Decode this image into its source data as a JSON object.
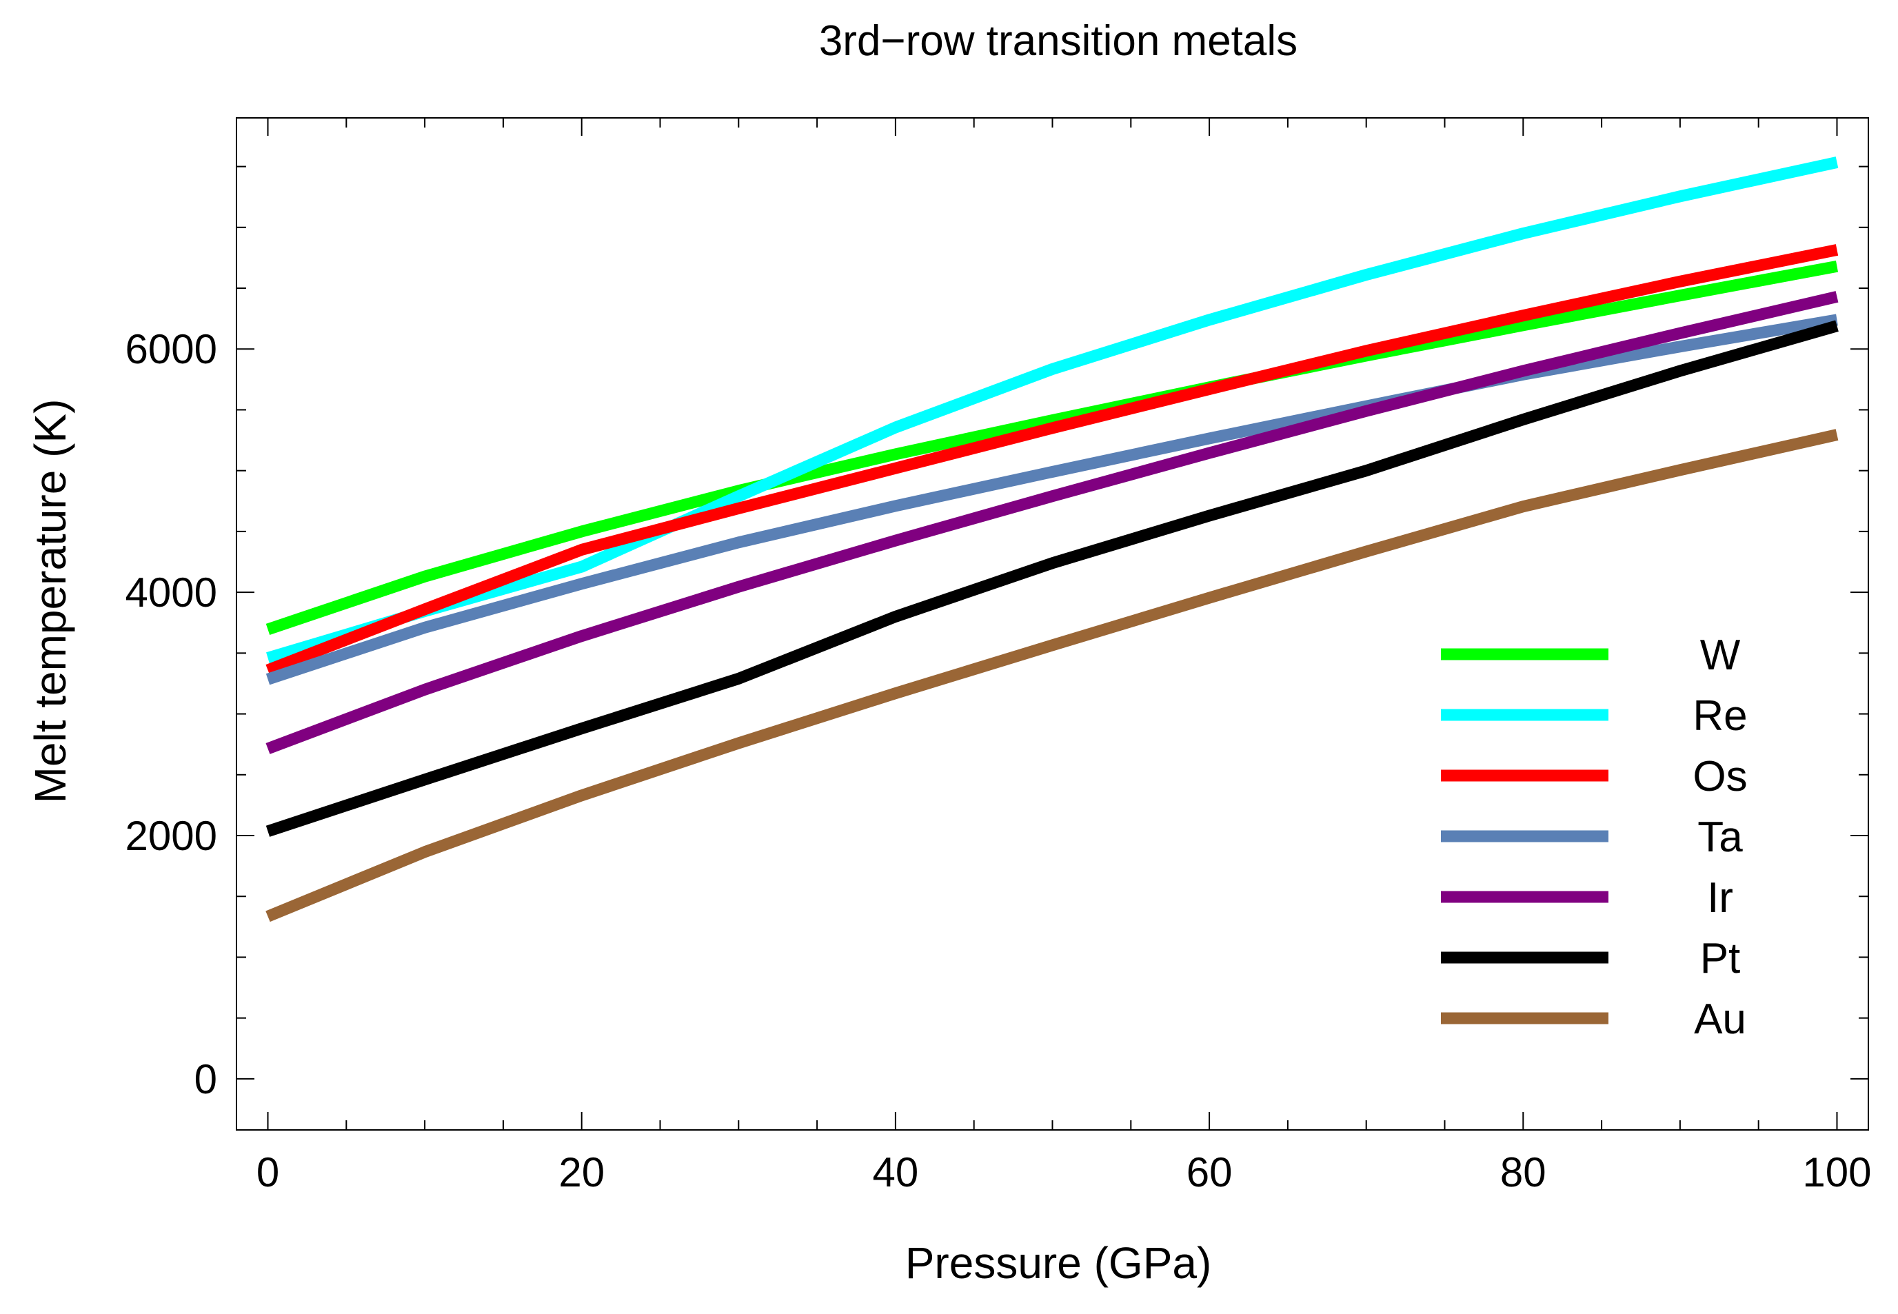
{
  "chart_data": {
    "type": "line",
    "title": "3rd−row transition metals",
    "xlabel": "Pressure (GPa)",
    "ylabel": "Melt temperature (K)",
    "xlim": [
      -2,
      102
    ],
    "ylim": [
      -420,
      7900
    ],
    "x_ticks": [
      0,
      20,
      40,
      60,
      80,
      100
    ],
    "x_tick_labels": [
      "0",
      "20",
      "40",
      "60",
      "80",
      "100"
    ],
    "x_minor_ticks": [
      5,
      10,
      15,
      25,
      30,
      35,
      45,
      50,
      55,
      65,
      70,
      75,
      85,
      90,
      95
    ],
    "y_ticks": [
      0,
      2000,
      4000,
      6000
    ],
    "y_tick_labels": [
      "0",
      "2000",
      "4000",
      "6000"
    ],
    "y_minor_ticks": [
      500,
      1000,
      1500,
      2500,
      3000,
      3500,
      4500,
      5000,
      5500,
      6500,
      7000,
      7500
    ],
    "grid": false,
    "legend_position": "bottom-right",
    "x": [
      0,
      10,
      20,
      30,
      40,
      50,
      60,
      70,
      80,
      90,
      100
    ],
    "series": [
      {
        "name": "W",
        "color": "#00ff00",
        "values": [
          3695,
          4130,
          4500,
          4835,
          5135,
          5415,
          5685,
          5945,
          6195,
          6440,
          6680
        ]
      },
      {
        "name": "Re",
        "color": "#00ffff",
        "values": [
          3460,
          3845,
          4210,
          4790,
          5355,
          5835,
          6240,
          6610,
          6950,
          7255,
          7535
        ]
      },
      {
        "name": "Os",
        "color": "#ff0000",
        "values": [
          3360,
          3860,
          4350,
          4690,
          5020,
          5350,
          5670,
          5985,
          6275,
          6555,
          6815
        ]
      },
      {
        "name": "Ta",
        "color": "#5a80b5",
        "values": [
          3285,
          3710,
          4070,
          4410,
          4710,
          4990,
          5265,
          5530,
          5790,
          6020,
          6240
        ]
      },
      {
        "name": "Ir",
        "color": "#800080",
        "values": [
          2715,
          3200,
          3640,
          4045,
          4425,
          4790,
          5145,
          5490,
          5820,
          6130,
          6430
        ]
      },
      {
        "name": "Pt",
        "color": "#000000",
        "values": [
          2035,
          2460,
          2880,
          3290,
          3800,
          4240,
          4630,
          5000,
          5420,
          5820,
          6190
        ]
      },
      {
        "name": "Au",
        "color": "#9a6636",
        "values": [
          1335,
          1865,
          2330,
          2760,
          3170,
          3565,
          3955,
          4335,
          4705,
          5005,
          5295
        ]
      }
    ]
  }
}
